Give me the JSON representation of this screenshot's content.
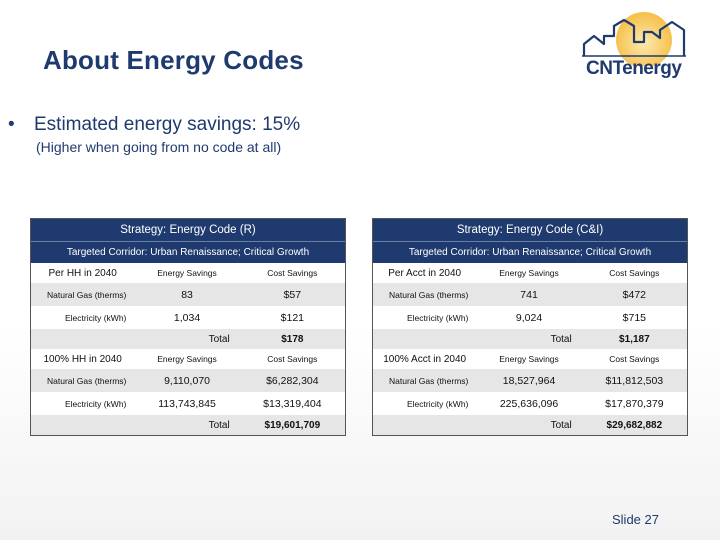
{
  "slide": {
    "title": "About Energy Codes",
    "logo_text": "CNTenergy",
    "bullet_mark": "•",
    "bullet_main": "Estimated energy savings: 15%",
    "bullet_sub": "(Higher when going from no code at all)",
    "slide_number": "Slide 27"
  },
  "panels": [
    {
      "strategy": "Strategy:  Energy Code (R)",
      "corridor": "Targeted Corridor: Urban Renaissance; Critical Growth",
      "sections": [
        {
          "label": "Per HH in 2040",
          "col_energy": "Energy Savings",
          "col_cost": "Cost Savings",
          "rows": [
            {
              "name": "Natural Gas (therms)",
              "energy": "83",
              "cost": "$57"
            },
            {
              "name": "Electricity (kWh)",
              "energy": "1,034",
              "cost": "$121"
            }
          ],
          "total_label": "Total",
          "total_value": "$178"
        },
        {
          "label": "100% HH in 2040",
          "col_energy": "Energy Savings",
          "col_cost": "Cost Savings",
          "rows": [
            {
              "name": "Natural Gas (therms)",
              "energy": "9,110,070",
              "cost": "$6,282,304"
            },
            {
              "name": "Electricity (kWh)",
              "energy": "113,743,845",
              "cost": "$13,319,404"
            }
          ],
          "total_label": "Total",
          "total_value": "$19,601,709"
        }
      ]
    },
    {
      "strategy": "Strategy:  Energy Code (C&I)",
      "corridor": "Targeted Corridor: Urban Renaissance; Critical Growth",
      "sections": [
        {
          "label": "Per Acct in 2040",
          "col_energy": "Energy Savings",
          "col_cost": "Cost Savings",
          "rows": [
            {
              "name": "Natural Gas (therms)",
              "energy": "741",
              "cost": "$472"
            },
            {
              "name": "Electricity (kWh)",
              "energy": "9,024",
              "cost": "$715"
            }
          ],
          "total_label": "Total",
          "total_value": "$1,187"
        },
        {
          "label": "100% Acct in 2040",
          "col_energy": "Energy Savings",
          "col_cost": "Cost Savings",
          "rows": [
            {
              "name": "Natural Gas (therms)",
              "energy": "18,527,964",
              "cost": "$11,812,503"
            },
            {
              "name": "Electricity (kWh)",
              "energy": "225,636,096",
              "cost": "$17,870,379"
            }
          ],
          "total_label": "Total",
          "total_value": "$29,682,882"
        }
      ]
    }
  ],
  "colors": {
    "header_bg": "#1f3a6e",
    "title": "#1f3a6e",
    "stripe": "#e6e6e6",
    "sun": "#f5b731"
  }
}
